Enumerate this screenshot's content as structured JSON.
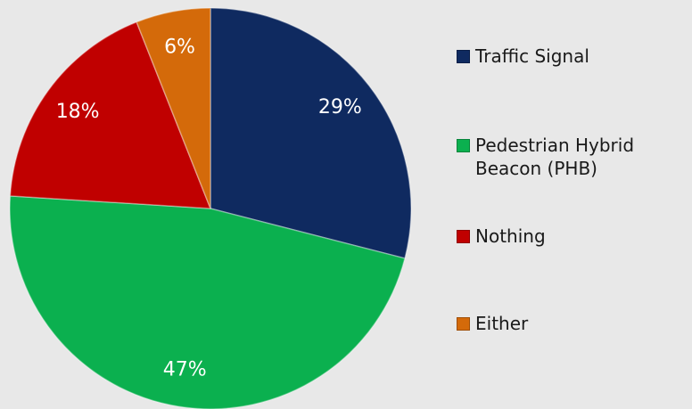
{
  "chart_data": {
    "type": "pie",
    "categories": [
      "Traffic Signal",
      "Pedestrian Hybrid Beacon (PHB)",
      "Nothing",
      "Either"
    ],
    "values": [
      29,
      47,
      18,
      6
    ],
    "value_labels": [
      "29%",
      "47%",
      "18%",
      "6%"
    ],
    "colors": [
      "#0f2a60",
      "#0bb04f",
      "#c00000",
      "#d46a0a"
    ],
    "legend": "right"
  }
}
